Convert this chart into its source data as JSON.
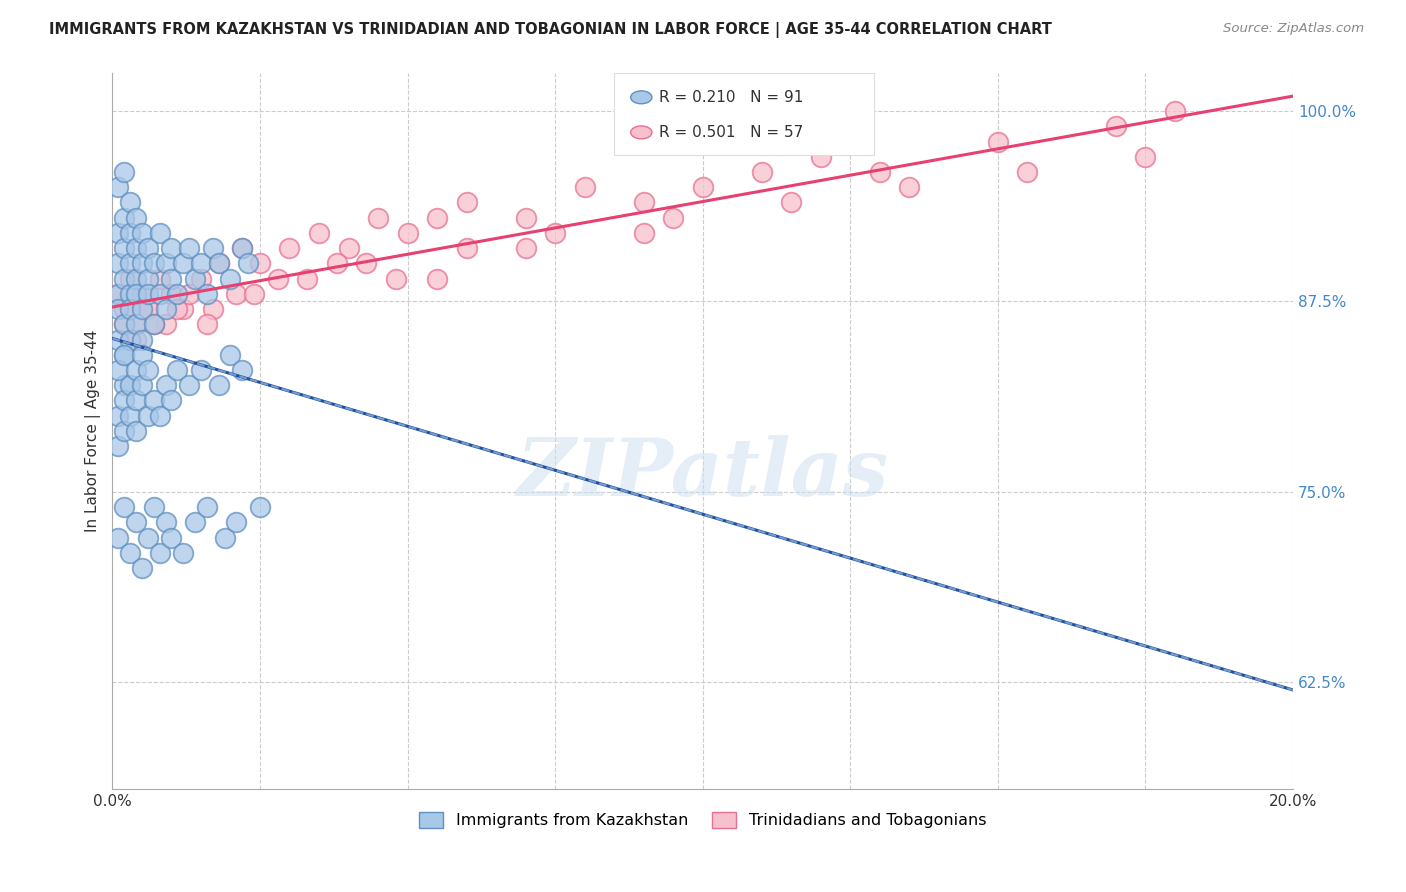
{
  "title": "IMMIGRANTS FROM KAZAKHSTAN VS TRINIDADIAN AND TOBAGONIAN IN LABOR FORCE | AGE 35-44 CORRELATION CHART",
  "source": "Source: ZipAtlas.com",
  "ylabel": "In Labor Force | Age 35-44",
  "xlim": [
    0.0,
    0.2
  ],
  "ylim": [
    0.555,
    1.025
  ],
  "xticks": [
    0.0,
    0.025,
    0.05,
    0.075,
    0.1,
    0.125,
    0.15,
    0.175,
    0.2
  ],
  "xticklabels": [
    "0.0%",
    "",
    "",
    "",
    "",
    "",
    "",
    "",
    "20.0%"
  ],
  "yticks": [
    0.625,
    0.75,
    0.875,
    1.0
  ],
  "yticklabels": [
    "62.5%",
    "75.0%",
    "87.5%",
    "100.0%"
  ],
  "blue_R": 0.21,
  "blue_N": 91,
  "pink_R": 0.501,
  "pink_N": 57,
  "blue_color": "#a8c8e8",
  "pink_color": "#f8c0cc",
  "blue_edge": "#6090c0",
  "pink_edge": "#e87090",
  "blue_line_color": "#2050a0",
  "pink_line_color": "#e84070",
  "blue_line_style": "-",
  "pink_line_style": "-",
  "watermark_text": "ZIPatlas",
  "legend_label_blue": "Immigrants from Kazakhstan",
  "legend_label_pink": "Trinidadians and Tobagonians",
  "blue_x": [
    0.001,
    0.001,
    0.001,
    0.001,
    0.001,
    0.001,
    0.002,
    0.002,
    0.002,
    0.002,
    0.002,
    0.002,
    0.002,
    0.003,
    0.003,
    0.003,
    0.003,
    0.003,
    0.003,
    0.004,
    0.004,
    0.004,
    0.004,
    0.004,
    0.005,
    0.005,
    0.005,
    0.005,
    0.006,
    0.006,
    0.006,
    0.007,
    0.007,
    0.008,
    0.008,
    0.009,
    0.009,
    0.01,
    0.01,
    0.011,
    0.012,
    0.013,
    0.014,
    0.015,
    0.016,
    0.017,
    0.018,
    0.02,
    0.022,
    0.023,
    0.001,
    0.001,
    0.001,
    0.002,
    0.002,
    0.002,
    0.003,
    0.003,
    0.004,
    0.004,
    0.004,
    0.005,
    0.005,
    0.006,
    0.006,
    0.007,
    0.008,
    0.009,
    0.01,
    0.011,
    0.013,
    0.015,
    0.018,
    0.02,
    0.022,
    0.001,
    0.002,
    0.003,
    0.004,
    0.005,
    0.006,
    0.007,
    0.008,
    0.009,
    0.01,
    0.012,
    0.014,
    0.016,
    0.019,
    0.021,
    0.025
  ],
  "blue_y": [
    0.88,
    0.9,
    0.92,
    0.85,
    0.87,
    0.95,
    0.89,
    0.91,
    0.93,
    0.86,
    0.84,
    0.96,
    0.82,
    0.9,
    0.88,
    0.85,
    0.92,
    0.87,
    0.94,
    0.91,
    0.89,
    0.86,
    0.93,
    0.88,
    0.9,
    0.87,
    0.85,
    0.92,
    0.89,
    0.91,
    0.88,
    0.86,
    0.9,
    0.88,
    0.92,
    0.87,
    0.9,
    0.89,
    0.91,
    0.88,
    0.9,
    0.91,
    0.89,
    0.9,
    0.88,
    0.91,
    0.9,
    0.89,
    0.91,
    0.9,
    0.8,
    0.83,
    0.78,
    0.81,
    0.84,
    0.79,
    0.82,
    0.8,
    0.83,
    0.81,
    0.79,
    0.82,
    0.84,
    0.8,
    0.83,
    0.81,
    0.8,
    0.82,
    0.81,
    0.83,
    0.82,
    0.83,
    0.82,
    0.84,
    0.83,
    0.72,
    0.74,
    0.71,
    0.73,
    0.7,
    0.72,
    0.74,
    0.71,
    0.73,
    0.72,
    0.71,
    0.73,
    0.74,
    0.72,
    0.73,
    0.74
  ],
  "pink_x": [
    0.001,
    0.002,
    0.003,
    0.004,
    0.005,
    0.006,
    0.008,
    0.01,
    0.012,
    0.015,
    0.018,
    0.022,
    0.025,
    0.03,
    0.035,
    0.04,
    0.045,
    0.05,
    0.055,
    0.06,
    0.07,
    0.08,
    0.09,
    0.1,
    0.11,
    0.12,
    0.13,
    0.15,
    0.17,
    0.18,
    0.002,
    0.004,
    0.006,
    0.009,
    0.013,
    0.017,
    0.021,
    0.028,
    0.038,
    0.048,
    0.06,
    0.075,
    0.095,
    0.115,
    0.135,
    0.155,
    0.175,
    0.003,
    0.007,
    0.011,
    0.016,
    0.024,
    0.033,
    0.043,
    0.055,
    0.07,
    0.09
  ],
  "pink_y": [
    0.88,
    0.87,
    0.89,
    0.86,
    0.88,
    0.87,
    0.89,
    0.88,
    0.87,
    0.89,
    0.9,
    0.91,
    0.9,
    0.91,
    0.92,
    0.91,
    0.93,
    0.92,
    0.93,
    0.94,
    0.93,
    0.95,
    0.94,
    0.95,
    0.96,
    0.97,
    0.96,
    0.98,
    0.99,
    1.0,
    0.86,
    0.85,
    0.87,
    0.86,
    0.88,
    0.87,
    0.88,
    0.89,
    0.9,
    0.89,
    0.91,
    0.92,
    0.93,
    0.94,
    0.95,
    0.96,
    0.97,
    0.85,
    0.86,
    0.87,
    0.86,
    0.88,
    0.89,
    0.9,
    0.89,
    0.91,
    0.92
  ]
}
